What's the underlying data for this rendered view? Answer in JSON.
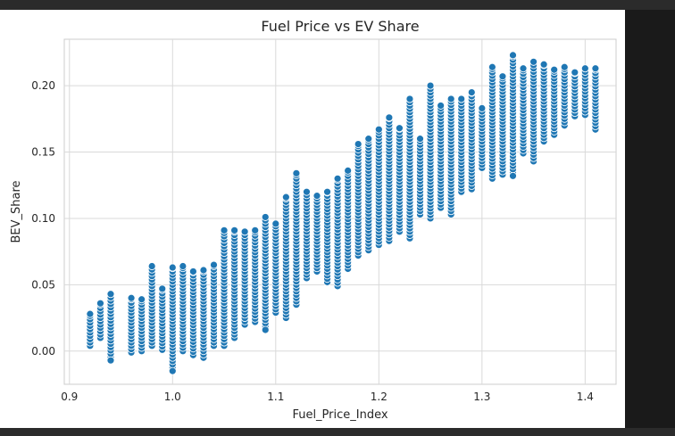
{
  "chart_data": {
    "type": "scatter",
    "title": "Fuel Price vs EV Share",
    "xlabel": "Fuel_Price_Index",
    "ylabel": "BEV_Share",
    "xlim": [
      0.895,
      1.43
    ],
    "ylim": [
      -0.025,
      0.235
    ],
    "x_ticks": [
      "0.9",
      "1.0",
      "1.1",
      "1.2",
      "1.3",
      "1.4"
    ],
    "x_tick_values": [
      0.9,
      1.0,
      1.1,
      1.2,
      1.3,
      1.4
    ],
    "y_ticks": [
      "0.00",
      "0.05",
      "0.10",
      "0.15",
      "0.20"
    ],
    "y_tick_values": [
      0.0,
      0.05,
      0.1,
      0.15,
      0.2
    ],
    "grid": true,
    "point_color": "#1f77b4",
    "point_edge_color": "#ffffff",
    "band_spacing": 0.01,
    "columns": [
      {
        "x": 0.92,
        "min": 0.004,
        "max": 0.028
      },
      {
        "x": 0.93,
        "min": 0.01,
        "max": 0.036
      },
      {
        "x": 0.94,
        "min": -0.007,
        "max": 0.043
      },
      {
        "x": 0.96,
        "min": -0.001,
        "max": 0.04
      },
      {
        "x": 0.97,
        "min": 0.0,
        "max": 0.039
      },
      {
        "x": 0.98,
        "min": 0.004,
        "max": 0.064
      },
      {
        "x": 0.99,
        "min": 0.001,
        "max": 0.047
      },
      {
        "x": 1.0,
        "min": -0.015,
        "max": 0.063
      },
      {
        "x": 1.01,
        "min": 0.0,
        "max": 0.064
      },
      {
        "x": 1.02,
        "min": -0.003,
        "max": 0.06
      },
      {
        "x": 1.03,
        "min": -0.005,
        "max": 0.061
      },
      {
        "x": 1.04,
        "min": 0.004,
        "max": 0.065
      },
      {
        "x": 1.05,
        "min": 0.004,
        "max": 0.091
      },
      {
        "x": 1.06,
        "min": 0.01,
        "max": 0.091
      },
      {
        "x": 1.07,
        "min": 0.02,
        "max": 0.09
      },
      {
        "x": 1.08,
        "min": 0.022,
        "max": 0.091
      },
      {
        "x": 1.09,
        "min": 0.016,
        "max": 0.101
      },
      {
        "x": 1.1,
        "min": 0.029,
        "max": 0.096
      },
      {
        "x": 1.11,
        "min": 0.025,
        "max": 0.116
      },
      {
        "x": 1.12,
        "min": 0.035,
        "max": 0.134
      },
      {
        "x": 1.13,
        "min": 0.055,
        "max": 0.12
      },
      {
        "x": 1.14,
        "min": 0.06,
        "max": 0.117
      },
      {
        "x": 1.15,
        "min": 0.052,
        "max": 0.12
      },
      {
        "x": 1.16,
        "min": 0.049,
        "max": 0.13
      },
      {
        "x": 1.17,
        "min": 0.062,
        "max": 0.136
      },
      {
        "x": 1.18,
        "min": 0.072,
        "max": 0.156
      },
      {
        "x": 1.19,
        "min": 0.076,
        "max": 0.16
      },
      {
        "x": 1.2,
        "min": 0.08,
        "max": 0.167
      },
      {
        "x": 1.21,
        "min": 0.083,
        "max": 0.176
      },
      {
        "x": 1.22,
        "min": 0.09,
        "max": 0.168
      },
      {
        "x": 1.23,
        "min": 0.085,
        "max": 0.19
      },
      {
        "x": 1.24,
        "min": 0.103,
        "max": 0.16
      },
      {
        "x": 1.25,
        "min": 0.1,
        "max": 0.2
      },
      {
        "x": 1.26,
        "min": 0.108,
        "max": 0.185
      },
      {
        "x": 1.27,
        "min": 0.103,
        "max": 0.19
      },
      {
        "x": 1.28,
        "min": 0.12,
        "max": 0.19
      },
      {
        "x": 1.29,
        "min": 0.122,
        "max": 0.195
      },
      {
        "x": 1.3,
        "min": 0.138,
        "max": 0.183
      },
      {
        "x": 1.31,
        "min": 0.13,
        "max": 0.214
      },
      {
        "x": 1.32,
        "min": 0.133,
        "max": 0.207
      },
      {
        "x": 1.33,
        "min": 0.132,
        "max": 0.223
      },
      {
        "x": 1.34,
        "min": 0.149,
        "max": 0.213
      },
      {
        "x": 1.35,
        "min": 0.143,
        "max": 0.218
      },
      {
        "x": 1.36,
        "min": 0.158,
        "max": 0.216
      },
      {
        "x": 1.37,
        "min": 0.163,
        "max": 0.212
      },
      {
        "x": 1.38,
        "min": 0.17,
        "max": 0.214
      },
      {
        "x": 1.39,
        "min": 0.177,
        "max": 0.21
      },
      {
        "x": 1.4,
        "min": 0.178,
        "max": 0.213
      },
      {
        "x": 1.41,
        "min": 0.167,
        "max": 0.213
      }
    ],
    "outliers": [
      {
        "x": 0.94,
        "y": -0.007
      },
      {
        "x": 1.0,
        "y": -0.015
      },
      {
        "x": 1.09,
        "y": 0.016
      },
      {
        "x": 1.33,
        "y": 0.132
      },
      {
        "x": 1.33,
        "y": 0.223
      }
    ]
  }
}
